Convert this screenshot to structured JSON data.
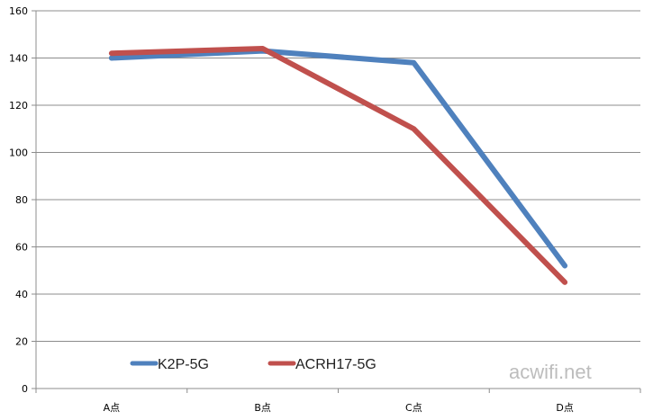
{
  "chart_data": {
    "type": "line",
    "title": "",
    "xlabel": "",
    "ylabel": "",
    "categories": [
      "A点",
      "B点",
      "C点",
      "D点"
    ],
    "ylim": [
      0,
      160
    ],
    "yticks": [
      0,
      20,
      40,
      60,
      80,
      100,
      120,
      140,
      160
    ],
    "grid": true,
    "legend_position": "bottom-left (inside plot)",
    "series": [
      {
        "name": "K2P-5G",
        "color": "#4f81bd",
        "values": [
          140,
          143,
          138,
          52
        ]
      },
      {
        "name": "ACRH17-5G",
        "color": "#c0504d",
        "values": [
          142,
          144,
          110,
          45
        ]
      }
    ]
  },
  "watermark": "acwifi.net"
}
